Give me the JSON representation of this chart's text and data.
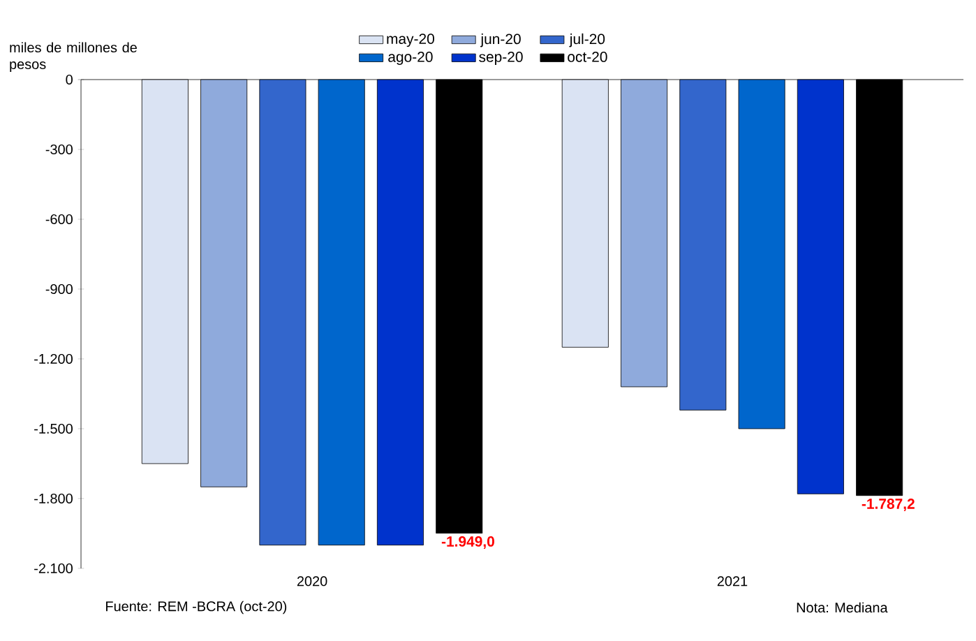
{
  "chart_data": {
    "type": "bar",
    "ylabel": "miles de millones de pesos",
    "categories": [
      "2020",
      "2021"
    ],
    "series": [
      {
        "name": "may-20",
        "color": "#dae3f3",
        "values": [
          -1650,
          -1150
        ]
      },
      {
        "name": "jun-20",
        "color": "#8faadc",
        "values": [
          -1750,
          -1320
        ]
      },
      {
        "name": "jul-20",
        "color": "#3366cc",
        "values": [
          -2000,
          -1420
        ]
      },
      {
        "name": "ago-20",
        "color": "#0066cc",
        "values": [
          -2000,
          -1500
        ]
      },
      {
        "name": "sep-20",
        "color": "#0033cc",
        "values": [
          -2000,
          -1780
        ]
      },
      {
        "name": "oct-20",
        "color": "#000000",
        "values": [
          -1949,
          -1787.2
        ],
        "value_labels": [
          "-1.949,0",
          "-1.787,2"
        ]
      }
    ],
    "ylim": [
      -2100,
      0
    ],
    "yticks": [
      {
        "value": -2100,
        "label": "-2.100"
      },
      {
        "value": -1800,
        "label": "-1.800"
      },
      {
        "value": -1500,
        "label": "-1.500"
      },
      {
        "value": -1200,
        "label": "-1.200"
      },
      -900,
      -600,
      -300,
      0
    ],
    "legend": "top",
    "grid": false,
    "annotations": [
      "Fuente: REM -BCRA (oct-20)",
      "Nota: Mediana"
    ]
  }
}
